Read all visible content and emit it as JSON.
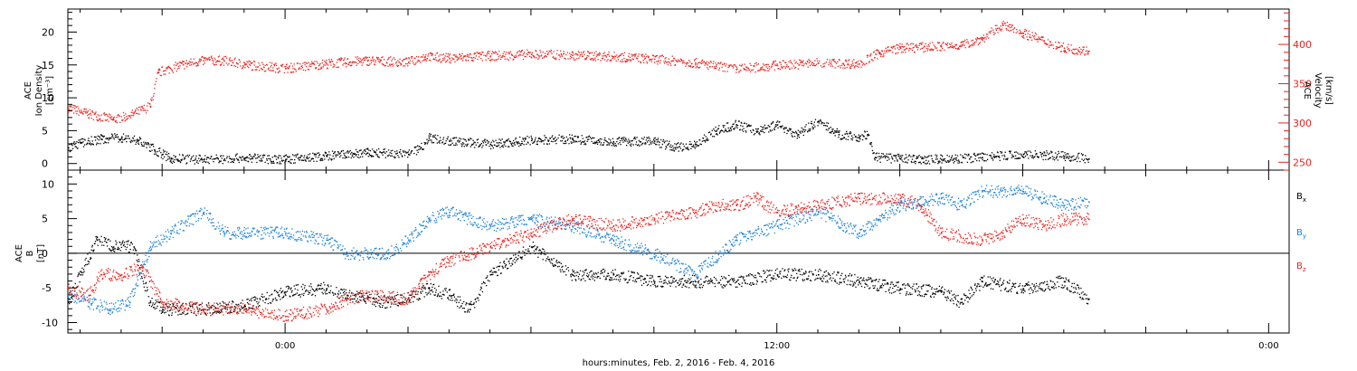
{
  "x_axis_label": "hours:minutes, Feb.  2, 2016 - Feb.  4, 2016",
  "x_tick_labels": [
    "0:00",
    "12:00",
    "0:00"
  ],
  "colors": {
    "black": "#000000",
    "red": "#e8231e",
    "blue": "#1a7fd6"
  },
  "chart_data": [
    {
      "type": "scatter",
      "title": "",
      "xlabel": "hours:minutes, Feb.  2, 2016 - Feb.  4, 2016",
      "ylabel_left": [
        "ACE",
        "Ion Density",
        "[cm⁻³]"
      ],
      "ylabel_right": [
        "ACE",
        "Velocity",
        "[km/s]"
      ],
      "xlim_hours": [
        -5.3,
        24.5
      ],
      "ylim_left": [
        -1,
        23.5
      ],
      "ylim_right": [
        240,
        445
      ],
      "yticks_left": [
        "0",
        "5",
        "10",
        "15",
        "20"
      ],
      "yticks_right": [
        "250",
        "300",
        "350",
        "400"
      ],
      "series": [
        {
          "axis": "left",
          "color": "#000000",
          "points": [
            [
              -5.3,
              2.5
            ],
            [
              -5.0,
              3.2
            ],
            [
              -4.5,
              3.8
            ],
            [
              -4.0,
              4.0
            ],
            [
              -3.6,
              3.6
            ],
            [
              -3.2,
              2.2
            ],
            [
              -3.0,
              1.5
            ],
            [
              -2.8,
              0.8
            ],
            [
              -2,
              0.7
            ],
            [
              -1,
              0.9
            ],
            [
              0,
              0.7
            ],
            [
              1,
              1.2
            ],
            [
              2,
              1.7
            ],
            [
              3,
              1.5
            ],
            [
              3.3,
              2.5
            ],
            [
              3.5,
              4.0
            ],
            [
              4,
              3.5
            ],
            [
              5,
              3.0
            ],
            [
              6,
              3.6
            ],
            [
              7,
              3.8
            ],
            [
              8,
              3.4
            ],
            [
              9,
              3.5
            ],
            [
              9.5,
              2.5
            ],
            [
              10,
              3.0
            ],
            [
              10.5,
              5.0
            ],
            [
              11,
              6.0
            ],
            [
              11.5,
              5.0
            ],
            [
              12,
              6.0
            ],
            [
              12.5,
              4.5
            ],
            [
              13,
              6.5
            ],
            [
              13.5,
              4.5
            ],
            [
              14,
              4.0
            ],
            [
              14.2,
              4.5
            ],
            [
              14.4,
              1.0
            ],
            [
              15,
              0.8
            ],
            [
              16,
              0.7
            ],
            [
              17,
              1.0
            ],
            [
              18,
              1.5
            ],
            [
              19,
              1.2
            ],
            [
              19.6,
              0.8
            ]
          ]
        },
        {
          "axis": "right",
          "color": "#e8231e",
          "points": [
            [
              -5.3,
              320
            ],
            [
              -4.8,
              312
            ],
            [
              -4.2,
              305
            ],
            [
              -3.8,
              310
            ],
            [
              -3.3,
              322
            ],
            [
              -3.1,
              365
            ],
            [
              -2.5,
              375
            ],
            [
              -2,
              380
            ],
            [
              -1.5,
              380
            ],
            [
              -1,
              375
            ],
            [
              0,
              370
            ],
            [
              1,
              376
            ],
            [
              2,
              380
            ],
            [
              3,
              378
            ],
            [
              3.4,
              385
            ],
            [
              4,
              383
            ],
            [
              5,
              386
            ],
            [
              6,
              388
            ],
            [
              7,
              387
            ],
            [
              8,
              385
            ],
            [
              9,
              382
            ],
            [
              10,
              377
            ],
            [
              10.5,
              373
            ],
            [
              11,
              369
            ],
            [
              12,
              374
            ],
            [
              13,
              377
            ],
            [
              14,
              376
            ],
            [
              14.5,
              390
            ],
            [
              15,
              396
            ],
            [
              16,
              398
            ],
            [
              16.5,
              400
            ],
            [
              17,
              408
            ],
            [
              17.5,
              425
            ],
            [
              18,
              415
            ],
            [
              18.5,
              405
            ],
            [
              19,
              396
            ],
            [
              19.6,
              392
            ]
          ]
        }
      ]
    },
    {
      "type": "scatter",
      "title": "",
      "xlabel": "hours:minutes, Feb.  2, 2016 - Feb.  4, 2016",
      "ylabel": [
        "ACE",
        "B",
        "[nT]"
      ],
      "xlim_hours": [
        -5.3,
        24.5
      ],
      "ylim": [
        -11.5,
        12
      ],
      "yticks": [
        "-10",
        "-5",
        "0",
        "5",
        "10"
      ],
      "legend": [
        "Bx",
        "By",
        "Bz"
      ],
      "legend_position": "right",
      "series": [
        {
          "name": "Bx",
          "color": "#000000",
          "points": [
            [
              -5.3,
              -7
            ],
            [
              -5.0,
              -3
            ],
            [
              -4.6,
              2
            ],
            [
              -4.2,
              1
            ],
            [
              -3.7,
              1
            ],
            [
              -3.3,
              -7
            ],
            [
              -3,
              -8
            ],
            [
              -2,
              -8
            ],
            [
              -1,
              -7.5
            ],
            [
              0,
              -5.5
            ],
            [
              1,
              -5
            ],
            [
              1.5,
              -6
            ],
            [
              2,
              -6.5
            ],
            [
              2.5,
              -7
            ],
            [
              3,
              -6.5
            ],
            [
              3.5,
              -5
            ],
            [
              4,
              -6
            ],
            [
              4.5,
              -8
            ],
            [
              5,
              -3
            ],
            [
              6,
              1
            ],
            [
              7,
              -3
            ],
            [
              8,
              -3
            ],
            [
              9,
              -4
            ],
            [
              10,
              -4
            ],
            [
              11,
              -4
            ],
            [
              12,
              -3
            ],
            [
              13,
              -3
            ],
            [
              14,
              -4
            ],
            [
              15,
              -5
            ],
            [
              16,
              -5.5
            ],
            [
              16.5,
              -7
            ],
            [
              17,
              -4
            ],
            [
              18,
              -5
            ],
            [
              19,
              -4
            ],
            [
              19.6,
              -6.5
            ]
          ]
        },
        {
          "name": "By",
          "color": "#1a7fd6",
          "points": [
            [
              -5.3,
              -6
            ],
            [
              -4.8,
              -7
            ],
            [
              -4.3,
              -8
            ],
            [
              -3.8,
              -7
            ],
            [
              -3.3,
              1
            ],
            [
              -2.8,
              3
            ],
            [
              -2,
              6
            ],
            [
              -1.5,
              3
            ],
            [
              -1,
              3
            ],
            [
              0,
              3
            ],
            [
              1,
              2
            ],
            [
              1.5,
              0
            ],
            [
              2,
              0
            ],
            [
              2.5,
              0
            ],
            [
              3,
              2
            ],
            [
              3.5,
              5
            ],
            [
              4,
              6
            ],
            [
              5,
              4
            ],
            [
              6,
              5
            ],
            [
              7,
              4
            ],
            [
              8,
              2
            ],
            [
              9,
              0
            ],
            [
              10,
              -3
            ],
            [
              11,
              2
            ],
            [
              12,
              4
            ],
            [
              13,
              6
            ],
            [
              14,
              3
            ],
            [
              15,
              7
            ],
            [
              16,
              8
            ],
            [
              16.5,
              7
            ],
            [
              17,
              9
            ],
            [
              18,
              9
            ],
            [
              18.5,
              8
            ],
            [
              19,
              7
            ],
            [
              19.6,
              7.5
            ]
          ]
        },
        {
          "name": "Bz",
          "color": "#e8231e",
          "points": [
            [
              -5.3,
              -5
            ],
            [
              -4.8,
              -6
            ],
            [
              -4.5,
              -3
            ],
            [
              -4,
              -3
            ],
            [
              -3.5,
              -2
            ],
            [
              -3,
              -7
            ],
            [
              -2,
              -8
            ],
            [
              -1,
              -8
            ],
            [
              0,
              -9
            ],
            [
              1,
              -8
            ],
            [
              1.5,
              -6.5
            ],
            [
              2,
              -6
            ],
            [
              3,
              -6.5
            ],
            [
              3.5,
              -3
            ],
            [
              4,
              -1
            ],
            [
              5,
              1
            ],
            [
              6,
              3
            ],
            [
              7,
              5
            ],
            [
              8,
              4
            ],
            [
              9,
              5
            ],
            [
              10,
              6
            ],
            [
              10.5,
              7
            ],
            [
              11,
              7
            ],
            [
              11.5,
              8
            ],
            [
              12,
              6
            ],
            [
              13,
              7
            ],
            [
              14,
              8
            ],
            [
              15,
              8
            ],
            [
              15.5,
              7
            ],
            [
              16,
              3
            ],
            [
              17,
              2
            ],
            [
              17.5,
              3
            ],
            [
              18,
              5
            ],
            [
              18.5,
              4
            ],
            [
              19,
              5
            ],
            [
              19.6,
              5
            ]
          ]
        }
      ]
    }
  ]
}
